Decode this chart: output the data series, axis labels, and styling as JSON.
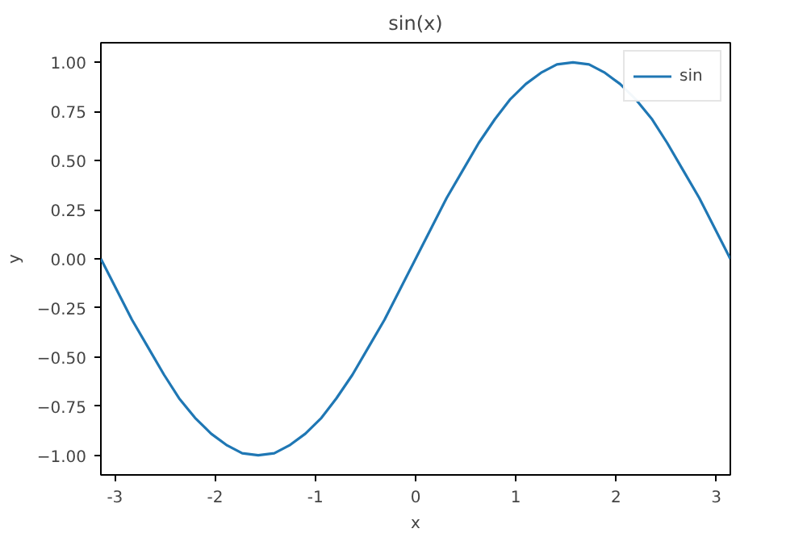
{
  "chart_data": {
    "type": "line",
    "title": "sin(x)",
    "xlabel": "x",
    "ylabel": "y",
    "x": [
      -3.14,
      -2.98,
      -2.83,
      -2.67,
      -2.51,
      -2.36,
      -2.2,
      -2.04,
      -1.88,
      -1.73,
      -1.57,
      -1.41,
      -1.26,
      -1.1,
      -0.94,
      -0.79,
      -0.63,
      -0.47,
      -0.31,
      -0.16,
      0,
      0.16,
      0.31,
      0.47,
      0.63,
      0.79,
      0.94,
      1.1,
      1.26,
      1.41,
      1.57,
      1.73,
      1.88,
      2.04,
      2.2,
      2.36,
      2.51,
      2.67,
      2.83,
      2.98,
      3.14
    ],
    "series": [
      {
        "name": "sin",
        "color": "#1f77b4",
        "values": [
          0,
          -0.16,
          -0.31,
          -0.45,
          -0.59,
          -0.71,
          -0.81,
          -0.89,
          -0.95,
          -0.99,
          -1,
          -0.99,
          -0.95,
          -0.89,
          -0.81,
          -0.71,
          -0.59,
          -0.45,
          -0.31,
          -0.16,
          0,
          0.16,
          0.31,
          0.45,
          0.59,
          0.71,
          0.81,
          0.89,
          0.95,
          0.99,
          1,
          0.99,
          0.95,
          0.89,
          0.81,
          0.71,
          0.59,
          0.45,
          0.31,
          0.16,
          0
        ]
      }
    ],
    "xlim": [
      -3.14,
      3.14
    ],
    "xticks": [
      -3,
      -2,
      -1,
      0,
      1,
      2,
      3
    ],
    "ylim": [
      -1.1,
      1.1
    ],
    "yticks": [
      {
        "value": -1,
        "label": "−1.00"
      },
      {
        "value": -0.75,
        "label": "−0.75"
      },
      {
        "value": -0.5,
        "label": "−0.50"
      },
      {
        "value": -0.25,
        "label": "−0.25"
      },
      {
        "value": 0,
        "label": "0.00"
      },
      {
        "value": 0.25,
        "label": "0.25"
      },
      {
        "value": 0.5,
        "label": "0.50"
      },
      {
        "value": 0.75,
        "label": "0.75"
      },
      {
        "value": 1,
        "label": "1.00"
      }
    ],
    "legend": "top right",
    "grid": false,
    "line_style": "solid"
  }
}
